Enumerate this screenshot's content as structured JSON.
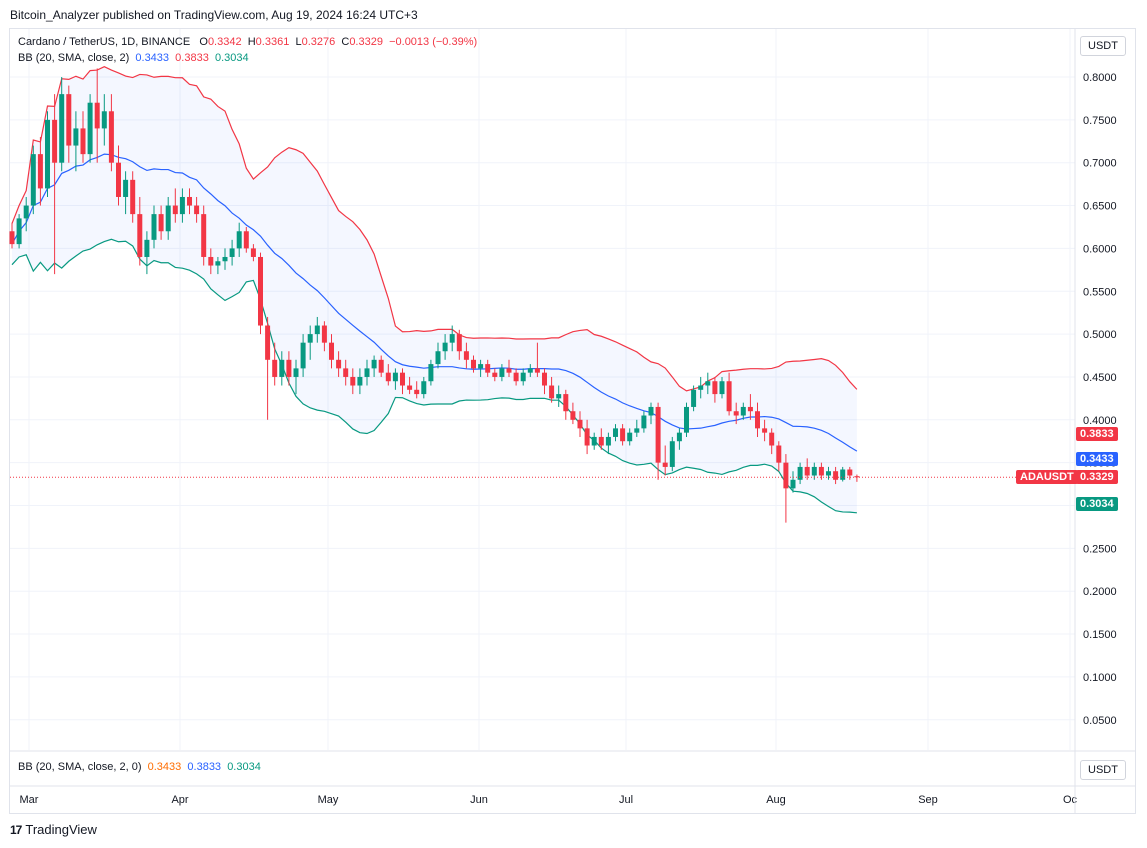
{
  "header": {
    "publisher_line": "Bitcoin_Analyzer published on TradingView.com, Aug 19, 2024 16:24 UTC+3"
  },
  "legend": {
    "symbol": "Cardano / TetherUS, 1D, BINANCE",
    "open_label": "O",
    "open": "0.3342",
    "high_label": "H",
    "high": "0.3361",
    "low_label": "L",
    "low": "0.3276",
    "close_label": "C",
    "close": "0.3329",
    "change": "−0.0013 (−0.39%)",
    "bb_title": "BB (20, SMA, close, 2)",
    "bb_basis": "0.3433",
    "bb_upper": "0.3833",
    "bb_lower": "0.3034"
  },
  "sub_legend": {
    "title": "BB (20, SMA, close, 2, 0)",
    "v1": "0.3433",
    "v2": "0.3833",
    "v3": "0.3034"
  },
  "currency_main": "USDT",
  "currency_sub": "USDT",
  "price_labels": {
    "upper": "0.3833",
    "basis": "0.3433",
    "symbol": "ADAUSDT",
    "last": "0.3329",
    "lower": "0.3034"
  },
  "footer": {
    "brand": "TradingView",
    "logo": "17"
  },
  "colors": {
    "up": "#089981",
    "down": "#f23645",
    "upper_band": "#f23645",
    "basis": "#2962ff",
    "lower_band": "#089981",
    "band_fill": "#2962ff"
  },
  "chart_data": {
    "type": "candlestick",
    "symbol": "ADAUSDT",
    "interval": "1D",
    "y_ticks": [
      "0.8000",
      "0.7500",
      "0.7000",
      "0.6500",
      "0.6000",
      "0.5500",
      "0.5000",
      "0.4500",
      "0.4000",
      "0.3500",
      "0.3000",
      "0.2500",
      "0.2000",
      "0.1500",
      "0.1000",
      "0.0500"
    ],
    "x_ticks": [
      "Mar",
      "Apr",
      "May",
      "Jun",
      "Jul",
      "Aug",
      "Sep",
      "Oc"
    ],
    "ylim": [
      0.0,
      0.84
    ],
    "grid": true,
    "start_date": "2024-03-01",
    "candles": [
      [
        0.62,
        0.63,
        0.6,
        0.605
      ],
      [
        0.605,
        0.64,
        0.6,
        0.635
      ],
      [
        0.635,
        0.66,
        0.62,
        0.65
      ],
      [
        0.65,
        0.72,
        0.64,
        0.71
      ],
      [
        0.71,
        0.73,
        0.65,
        0.67
      ],
      [
        0.67,
        0.76,
        0.66,
        0.75
      ],
      [
        0.75,
        0.78,
        0.57,
        0.7
      ],
      [
        0.7,
        0.8,
        0.69,
        0.78
      ],
      [
        0.78,
        0.79,
        0.7,
        0.72
      ],
      [
        0.72,
        0.76,
        0.69,
        0.74
      ],
      [
        0.74,
        0.76,
        0.7,
        0.71
      ],
      [
        0.71,
        0.78,
        0.7,
        0.77
      ],
      [
        0.77,
        0.81,
        0.7,
        0.74
      ],
      [
        0.74,
        0.78,
        0.72,
        0.76
      ],
      [
        0.76,
        0.78,
        0.69,
        0.7
      ],
      [
        0.7,
        0.72,
        0.65,
        0.66
      ],
      [
        0.66,
        0.69,
        0.64,
        0.68
      ],
      [
        0.68,
        0.69,
        0.63,
        0.64
      ],
      [
        0.64,
        0.66,
        0.58,
        0.59
      ],
      [
        0.59,
        0.62,
        0.57,
        0.61
      ],
      [
        0.61,
        0.65,
        0.6,
        0.64
      ],
      [
        0.64,
        0.65,
        0.61,
        0.62
      ],
      [
        0.62,
        0.66,
        0.61,
        0.65
      ],
      [
        0.65,
        0.67,
        0.63,
        0.64
      ],
      [
        0.64,
        0.67,
        0.63,
        0.66
      ],
      [
        0.66,
        0.67,
        0.64,
        0.65
      ],
      [
        0.65,
        0.66,
        0.63,
        0.64
      ],
      [
        0.64,
        0.65,
        0.58,
        0.59
      ],
      [
        0.59,
        0.6,
        0.57,
        0.58
      ],
      [
        0.58,
        0.59,
        0.57,
        0.585
      ],
      [
        0.585,
        0.6,
        0.575,
        0.59
      ],
      [
        0.59,
        0.61,
        0.58,
        0.6
      ],
      [
        0.6,
        0.63,
        0.59,
        0.62
      ],
      [
        0.62,
        0.625,
        0.595,
        0.6
      ],
      [
        0.6,
        0.605,
        0.585,
        0.59
      ],
      [
        0.59,
        0.595,
        0.5,
        0.51
      ],
      [
        0.51,
        0.52,
        0.4,
        0.47
      ],
      [
        0.47,
        0.49,
        0.44,
        0.45
      ],
      [
        0.45,
        0.48,
        0.44,
        0.47
      ],
      [
        0.47,
        0.48,
        0.44,
        0.45
      ],
      [
        0.45,
        0.47,
        0.43,
        0.46
      ],
      [
        0.46,
        0.5,
        0.45,
        0.49
      ],
      [
        0.49,
        0.51,
        0.47,
        0.5
      ],
      [
        0.5,
        0.52,
        0.49,
        0.51
      ],
      [
        0.51,
        0.515,
        0.48,
        0.49
      ],
      [
        0.49,
        0.5,
        0.46,
        0.47
      ],
      [
        0.47,
        0.48,
        0.45,
        0.46
      ],
      [
        0.46,
        0.47,
        0.44,
        0.45
      ],
      [
        0.45,
        0.46,
        0.43,
        0.44
      ],
      [
        0.44,
        0.46,
        0.43,
        0.45
      ],
      [
        0.45,
        0.47,
        0.44,
        0.46
      ],
      [
        0.46,
        0.475,
        0.45,
        0.47
      ],
      [
        0.47,
        0.475,
        0.45,
        0.455
      ],
      [
        0.455,
        0.465,
        0.44,
        0.445
      ],
      [
        0.445,
        0.46,
        0.435,
        0.455
      ],
      [
        0.455,
        0.46,
        0.43,
        0.44
      ],
      [
        0.44,
        0.45,
        0.43,
        0.435
      ],
      [
        0.435,
        0.445,
        0.425,
        0.43
      ],
      [
        0.43,
        0.45,
        0.425,
        0.445
      ],
      [
        0.445,
        0.47,
        0.44,
        0.465
      ],
      [
        0.465,
        0.49,
        0.46,
        0.48
      ],
      [
        0.48,
        0.5,
        0.47,
        0.49
      ],
      [
        0.49,
        0.51,
        0.48,
        0.5
      ],
      [
        0.5,
        0.505,
        0.47,
        0.48
      ],
      [
        0.48,
        0.49,
        0.46,
        0.47
      ],
      [
        0.47,
        0.475,
        0.455,
        0.46
      ],
      [
        0.46,
        0.47,
        0.45,
        0.465
      ],
      [
        0.465,
        0.47,
        0.45,
        0.455
      ],
      [
        0.455,
        0.46,
        0.445,
        0.45
      ],
      [
        0.45,
        0.465,
        0.445,
        0.46
      ],
      [
        0.46,
        0.47,
        0.45,
        0.455
      ],
      [
        0.455,
        0.46,
        0.44,
        0.445
      ],
      [
        0.445,
        0.46,
        0.44,
        0.455
      ],
      [
        0.455,
        0.465,
        0.45,
        0.46
      ],
      [
        0.46,
        0.49,
        0.45,
        0.455
      ],
      [
        0.455,
        0.46,
        0.43,
        0.44
      ],
      [
        0.44,
        0.45,
        0.42,
        0.425
      ],
      [
        0.425,
        0.44,
        0.415,
        0.43
      ],
      [
        0.43,
        0.435,
        0.4,
        0.41
      ],
      [
        0.41,
        0.42,
        0.395,
        0.4
      ],
      [
        0.4,
        0.41,
        0.38,
        0.39
      ],
      [
        0.39,
        0.4,
        0.36,
        0.37
      ],
      [
        0.37,
        0.385,
        0.365,
        0.38
      ],
      [
        0.38,
        0.39,
        0.365,
        0.37
      ],
      [
        0.37,
        0.385,
        0.36,
        0.38
      ],
      [
        0.38,
        0.395,
        0.375,
        0.39
      ],
      [
        0.39,
        0.395,
        0.37,
        0.375
      ],
      [
        0.375,
        0.39,
        0.37,
        0.385
      ],
      [
        0.385,
        0.4,
        0.38,
        0.39
      ],
      [
        0.39,
        0.41,
        0.385,
        0.405
      ],
      [
        0.405,
        0.42,
        0.395,
        0.415
      ],
      [
        0.415,
        0.42,
        0.33,
        0.35
      ],
      [
        0.35,
        0.37,
        0.335,
        0.345
      ],
      [
        0.345,
        0.38,
        0.34,
        0.375
      ],
      [
        0.375,
        0.39,
        0.365,
        0.385
      ],
      [
        0.385,
        0.42,
        0.38,
        0.415
      ],
      [
        0.415,
        0.44,
        0.41,
        0.435
      ],
      [
        0.435,
        0.45,
        0.425,
        0.44
      ],
      [
        0.44,
        0.455,
        0.43,
        0.445
      ],
      [
        0.445,
        0.45,
        0.42,
        0.43
      ],
      [
        0.43,
        0.45,
        0.425,
        0.445
      ],
      [
        0.445,
        0.455,
        0.405,
        0.41
      ],
      [
        0.41,
        0.42,
        0.395,
        0.405
      ],
      [
        0.405,
        0.42,
        0.4,
        0.415
      ],
      [
        0.415,
        0.43,
        0.4,
        0.41
      ],
      [
        0.41,
        0.42,
        0.38,
        0.39
      ],
      [
        0.39,
        0.4,
        0.375,
        0.385
      ],
      [
        0.385,
        0.39,
        0.36,
        0.37
      ],
      [
        0.37,
        0.375,
        0.34,
        0.35
      ],
      [
        0.35,
        0.36,
        0.28,
        0.32
      ],
      [
        0.32,
        0.34,
        0.315,
        0.33
      ],
      [
        0.33,
        0.35,
        0.325,
        0.345
      ],
      [
        0.345,
        0.355,
        0.33,
        0.335
      ],
      [
        0.335,
        0.35,
        0.33,
        0.345
      ],
      [
        0.345,
        0.35,
        0.33,
        0.335
      ],
      [
        0.335,
        0.345,
        0.33,
        0.34
      ],
      [
        0.34,
        0.345,
        0.325,
        0.33
      ],
      [
        0.33,
        0.345,
        0.328,
        0.342
      ],
      [
        0.342,
        0.345,
        0.33,
        0.335
      ],
      [
        0.3342,
        0.3361,
        0.3276,
        0.3329
      ]
    ]
  }
}
